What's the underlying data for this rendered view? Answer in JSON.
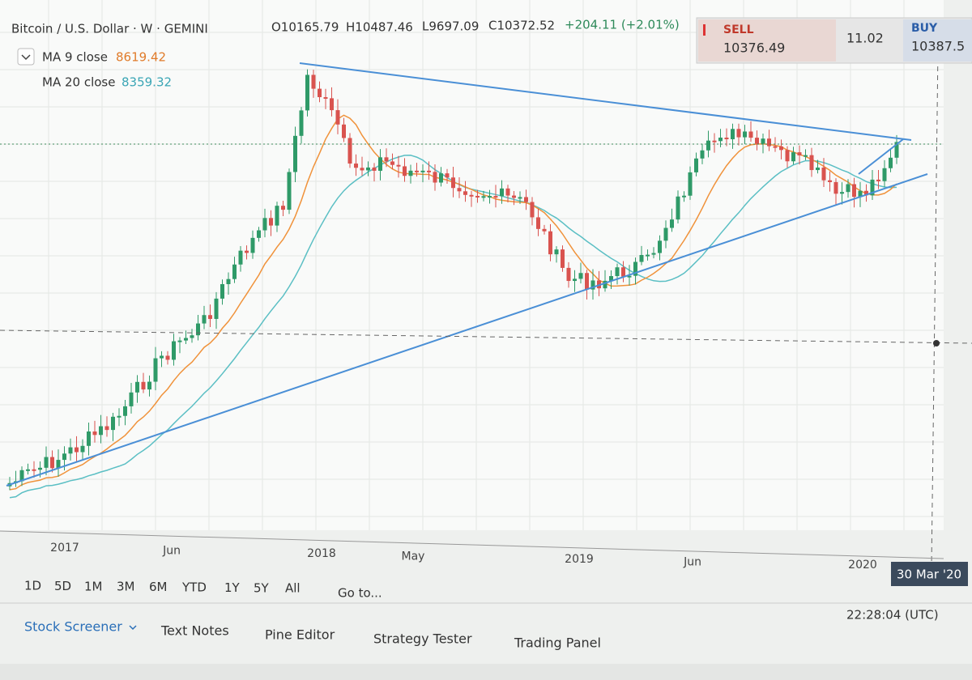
{
  "header": {
    "symbol": "Bitcoin / U.S. Dollar · W · GEMINI",
    "open": "O10165.79",
    "high": "H10487.46",
    "low": "L9697.09",
    "close": "C10372.52",
    "change": "+204.11 (+2.01%)"
  },
  "indicators": [
    {
      "name": "MA 9 close",
      "value": "8619.42"
    },
    {
      "name": "MA 20 close",
      "value": "8359.32"
    }
  ],
  "trade": {
    "sell_label": "SELL",
    "sell_price": "10376.49",
    "spread": "11.02",
    "buy_label": "BUY",
    "buy_price": "10387.5"
  },
  "time_axis": [
    "2017",
    "Jun",
    "2018",
    "May",
    "2019",
    "Jun",
    "2020"
  ],
  "cursor_date": "30 Mar '20",
  "ranges": [
    "1D",
    "5D",
    "1M",
    "3M",
    "6M",
    "YTD",
    "1Y",
    "5Y",
    "All"
  ],
  "goto": "Go to...",
  "clock": "22:28:04 (UTC)",
  "tabs": [
    "Stock Screener",
    "Text Notes",
    "Pine Editor",
    "Strategy Tester",
    "Trading Panel"
  ]
}
